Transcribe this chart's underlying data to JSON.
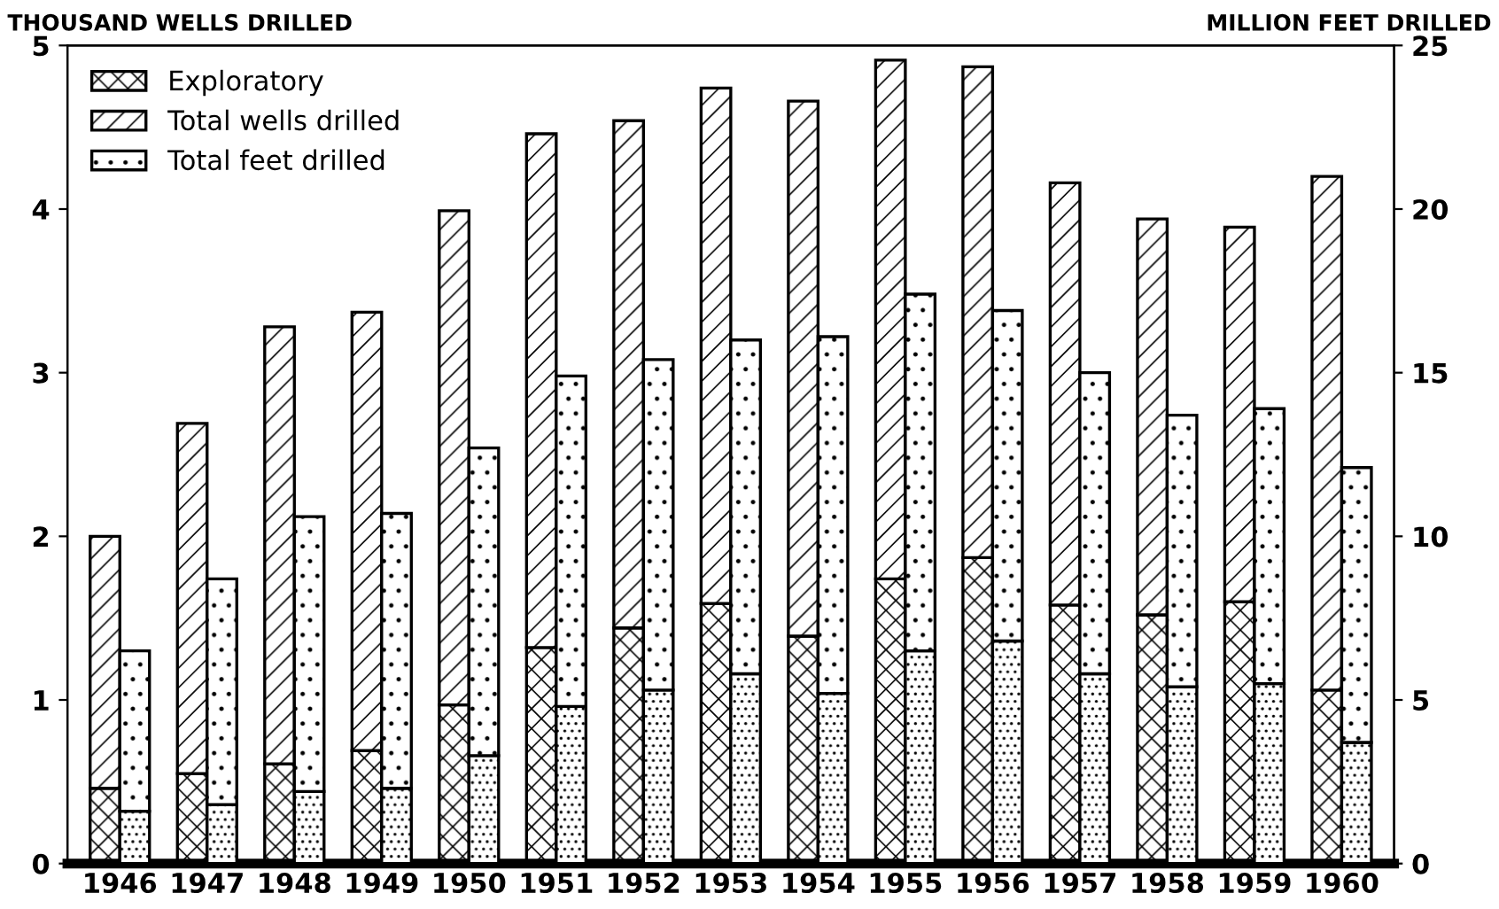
{
  "chart_data": {
    "type": "bar",
    "stacked": true,
    "ylabel": "THOUSAND WELLS DRILLED",
    "y2label": "MILLION FEET DRILLED",
    "categories": [
      "1946",
      "1947",
      "1948",
      "1949",
      "1950",
      "1951",
      "1952",
      "1953",
      "1954",
      "1955",
      "1956",
      "1957",
      "1958",
      "1959",
      "1960"
    ],
    "series": [
      {
        "name": "Exploratory",
        "color": "#000000",
        "values": [
          0.46,
          0.55,
          0.61,
          0.69,
          0.97,
          1.32,
          1.44,
          1.59,
          1.39,
          1.74,
          1.87,
          1.58,
          1.52,
          1.6,
          1.06
        ]
      },
      {
        "name": "Total wells drilled",
        "color": "#000000",
        "values": [
          1.54,
          2.14,
          2.67,
          2.68,
          3.02,
          3.14,
          3.1,
          3.15,
          3.27,
          3.17,
          3.0,
          2.58,
          2.42,
          2.29,
          3.14
        ]
      },
      {
        "color": "#000000",
        "axis": "y2",
        "values": [
          1.6,
          1.8,
          2.2,
          2.3,
          3.3,
          4.8,
          5.3,
          5.8,
          5.2,
          6.5,
          6.8,
          5.8,
          5.4,
          5.5,
          3.7
        ]
      },
      {
        "name": "Total feet drilled",
        "color": "#000000",
        "axis": "y2",
        "values": [
          4.9,
          6.9,
          8.4,
          8.4,
          9.4,
          10.1,
          10.1,
          10.2,
          10.9,
          10.9,
          10.1,
          9.2,
          8.3,
          8.4,
          8.4
        ]
      }
    ],
    "ylim": [
      0,
      5
    ],
    "yticks": [
      0,
      1,
      2,
      3,
      4,
      5
    ],
    "y2lim": [
      0,
      25
    ],
    "y2ticks": [
      0,
      5,
      10,
      15,
      20,
      25
    ],
    "grid": false,
    "legend": "top left"
  }
}
